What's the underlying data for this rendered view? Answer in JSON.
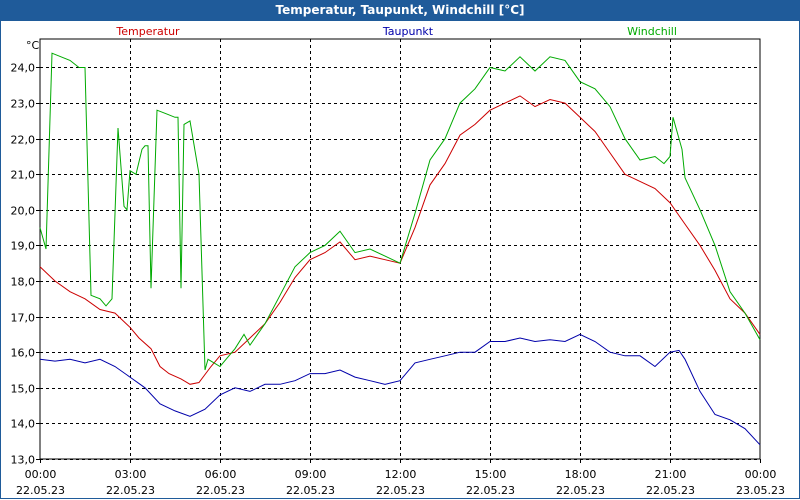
{
  "chart_data": {
    "type": "line",
    "title": "Temperatur, Taupunkt, Windchill [°C]",
    "ylabel": "°C",
    "xlabel": "",
    "ylim": [
      13.0,
      24.8
    ],
    "xlim": [
      0,
      24
    ],
    "grid": true,
    "yticks": [
      "13,0",
      "14,0",
      "15,0",
      "16,0",
      "17,0",
      "18,0",
      "19,0",
      "20,0",
      "21,0",
      "22,0",
      "23,0",
      "24,0"
    ],
    "xticks": [
      {
        "time": "00:00",
        "date": "22.05.23"
      },
      {
        "time": "03:00",
        "date": "22.05.23"
      },
      {
        "time": "06:00",
        "date": "22.05.23"
      },
      {
        "time": "09:00",
        "date": "22.05.23"
      },
      {
        "time": "12:00",
        "date": "22.05.23"
      },
      {
        "time": "15:00",
        "date": "22.05.23"
      },
      {
        "time": "18:00",
        "date": "22.05.23"
      },
      {
        "time": "21:00",
        "date": "22.05.23"
      },
      {
        "time": "00:00",
        "date": "23.05.23"
      }
    ],
    "series": [
      {
        "name": "Temperatur",
        "color": "#cc0000",
        "points": [
          [
            0,
            18.4
          ],
          [
            0.5,
            18.0
          ],
          [
            1,
            17.7
          ],
          [
            1.5,
            17.5
          ],
          [
            2,
            17.2
          ],
          [
            2.5,
            17.1
          ],
          [
            3,
            16.7
          ],
          [
            3.3,
            16.4
          ],
          [
            3.7,
            16.1
          ],
          [
            4,
            15.6
          ],
          [
            4.3,
            15.4
          ],
          [
            4.7,
            15.25
          ],
          [
            5,
            15.1
          ],
          [
            5.3,
            15.15
          ],
          [
            5.7,
            15.6
          ],
          [
            6,
            15.9
          ],
          [
            6.5,
            16.0
          ],
          [
            7,
            16.4
          ],
          [
            7.5,
            16.8
          ],
          [
            8,
            17.4
          ],
          [
            8.5,
            18.1
          ],
          [
            9,
            18.6
          ],
          [
            9.5,
            18.8
          ],
          [
            10,
            19.1
          ],
          [
            10.5,
            18.6
          ],
          [
            11,
            18.7
          ],
          [
            11.5,
            18.6
          ],
          [
            12,
            18.5
          ],
          [
            12.5,
            19.5
          ],
          [
            13,
            20.7
          ],
          [
            13.5,
            21.3
          ],
          [
            14,
            22.1
          ],
          [
            14.5,
            22.4
          ],
          [
            15,
            22.8
          ],
          [
            15.5,
            23.0
          ],
          [
            16,
            23.2
          ],
          [
            16.5,
            22.9
          ],
          [
            17,
            23.1
          ],
          [
            17.5,
            23.0
          ],
          [
            18,
            22.6
          ],
          [
            18.5,
            22.2
          ],
          [
            19,
            21.6
          ],
          [
            19.5,
            21.0
          ],
          [
            20,
            20.8
          ],
          [
            20.5,
            20.6
          ],
          [
            21,
            20.2
          ],
          [
            21.5,
            19.6
          ],
          [
            22,
            19.0
          ],
          [
            22.5,
            18.3
          ],
          [
            23,
            17.5
          ],
          [
            23.5,
            17.1
          ],
          [
            24,
            16.5
          ]
        ]
      },
      {
        "name": "Taupunkt",
        "color": "#0000aa",
        "points": [
          [
            0,
            15.8
          ],
          [
            0.5,
            15.75
          ],
          [
            1,
            15.8
          ],
          [
            1.5,
            15.7
          ],
          [
            2,
            15.8
          ],
          [
            2.5,
            15.6
          ],
          [
            3,
            15.3
          ],
          [
            3.5,
            15.0
          ],
          [
            4,
            14.55
          ],
          [
            4.5,
            14.35
          ],
          [
            5,
            14.2
          ],
          [
            5.5,
            14.4
          ],
          [
            6,
            14.8
          ],
          [
            6.5,
            15.0
          ],
          [
            7,
            14.9
          ],
          [
            7.5,
            15.1
          ],
          [
            8,
            15.1
          ],
          [
            8.5,
            15.2
          ],
          [
            9,
            15.4
          ],
          [
            9.5,
            15.4
          ],
          [
            10,
            15.5
          ],
          [
            10.5,
            15.3
          ],
          [
            11,
            15.2
          ],
          [
            11.5,
            15.1
          ],
          [
            12,
            15.2
          ],
          [
            12.5,
            15.7
          ],
          [
            13,
            15.8
          ],
          [
            13.5,
            15.9
          ],
          [
            14,
            16.0
          ],
          [
            14.5,
            16.0
          ],
          [
            15,
            16.3
          ],
          [
            15.5,
            16.3
          ],
          [
            16,
            16.4
          ],
          [
            16.5,
            16.3
          ],
          [
            17,
            16.35
          ],
          [
            17.5,
            16.3
          ],
          [
            18,
            16.5
          ],
          [
            18.5,
            16.3
          ],
          [
            19,
            16.0
          ],
          [
            19.5,
            15.9
          ],
          [
            20,
            15.9
          ],
          [
            20.5,
            15.6
          ],
          [
            21,
            16.0
          ],
          [
            21.3,
            16.05
          ],
          [
            21.5,
            15.8
          ],
          [
            22,
            14.9
          ],
          [
            22.5,
            14.25
          ],
          [
            23,
            14.1
          ],
          [
            23.5,
            13.85
          ],
          [
            24,
            13.4
          ]
        ]
      },
      {
        "name": "Windchill",
        "color": "#00aa00",
        "points": [
          [
            0,
            19.5
          ],
          [
            0.2,
            18.9
          ],
          [
            0.4,
            24.4
          ],
          [
            0.7,
            24.3
          ],
          [
            1,
            24.2
          ],
          [
            1.3,
            24.0
          ],
          [
            1.5,
            24.0
          ],
          [
            1.7,
            17.6
          ],
          [
            2,
            17.5
          ],
          [
            2.2,
            17.3
          ],
          [
            2.4,
            17.5
          ],
          [
            2.6,
            22.3
          ],
          [
            2.8,
            20.1
          ],
          [
            2.9,
            20.0
          ],
          [
            3,
            21.1
          ],
          [
            3.2,
            21.0
          ],
          [
            3.4,
            21.7
          ],
          [
            3.5,
            21.8
          ],
          [
            3.6,
            21.8
          ],
          [
            3.7,
            17.8
          ],
          [
            3.9,
            22.8
          ],
          [
            4.2,
            22.7
          ],
          [
            4.5,
            22.6
          ],
          [
            4.6,
            22.6
          ],
          [
            4.7,
            17.8
          ],
          [
            4.8,
            22.4
          ],
          [
            5,
            22.5
          ],
          [
            5.3,
            21.0
          ],
          [
            5.5,
            15.5
          ],
          [
            5.6,
            15.8
          ],
          [
            6,
            15.6
          ],
          [
            6.5,
            16.1
          ],
          [
            6.8,
            16.5
          ],
          [
            7,
            16.2
          ],
          [
            7.5,
            16.8
          ],
          [
            8,
            17.6
          ],
          [
            8.5,
            18.4
          ],
          [
            9,
            18.8
          ],
          [
            9.5,
            19.0
          ],
          [
            10,
            19.4
          ],
          [
            10.5,
            18.8
          ],
          [
            11,
            18.9
          ],
          [
            11.5,
            18.7
          ],
          [
            12,
            18.5
          ],
          [
            12.5,
            19.9
          ],
          [
            13,
            21.4
          ],
          [
            13.5,
            22.0
          ],
          [
            14,
            23.0
          ],
          [
            14.5,
            23.4
          ],
          [
            15,
            24.0
          ],
          [
            15.5,
            23.9
          ],
          [
            16,
            24.3
          ],
          [
            16.5,
            23.9
          ],
          [
            17,
            24.3
          ],
          [
            17.5,
            24.2
          ],
          [
            18,
            23.6
          ],
          [
            18.5,
            23.4
          ],
          [
            19,
            22.9
          ],
          [
            19.5,
            22.0
          ],
          [
            20,
            21.4
          ],
          [
            20.5,
            21.5
          ],
          [
            20.8,
            21.3
          ],
          [
            21,
            21.5
          ],
          [
            21.1,
            22.6
          ],
          [
            21.4,
            21.7
          ],
          [
            21.5,
            20.9
          ],
          [
            22,
            20.0
          ],
          [
            22.5,
            19.0
          ],
          [
            23,
            17.7
          ],
          [
            23.5,
            17.1
          ],
          [
            24,
            16.35
          ]
        ]
      }
    ]
  }
}
